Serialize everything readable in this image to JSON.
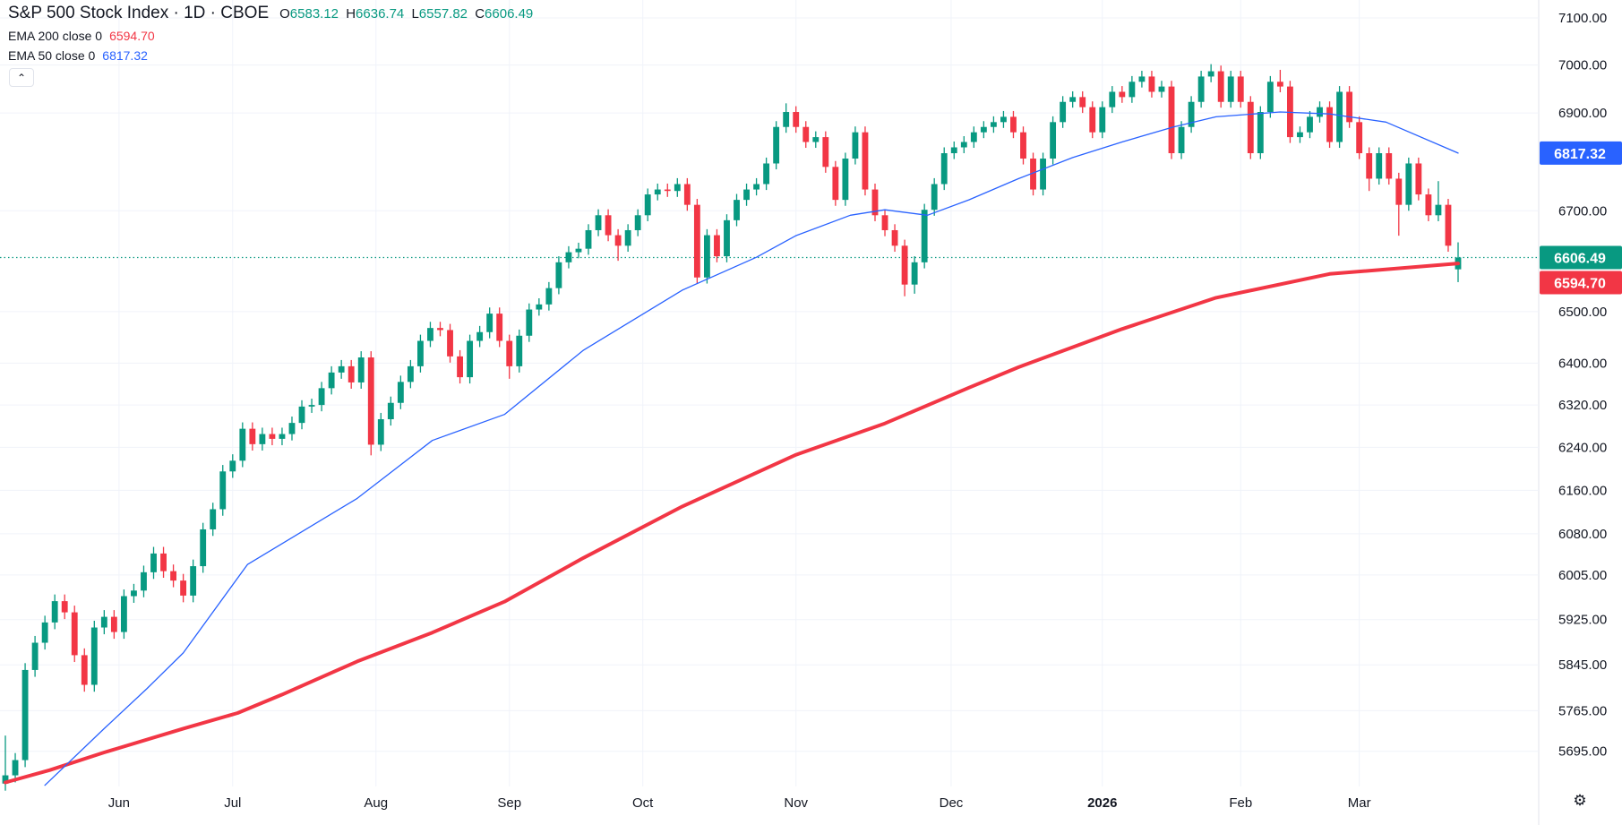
{
  "header": {
    "title": "S&P 500 Stock Index · 1D · CBOE",
    "open_label": "O",
    "open": "6583.12",
    "high_label": "H",
    "high": "6636.74",
    "low_label": "L",
    "low": "6557.82",
    "close_label": "C",
    "close": "6606.49"
  },
  "indicators": [
    {
      "label": "EMA 200 close 0",
      "value": "6594.70",
      "color": "#F23645"
    },
    {
      "label": "EMA 50 close 0",
      "value": "6817.32",
      "color": "#2962FF"
    }
  ],
  "icons": {
    "collapse": "chevron-up-icon",
    "settings": "gear-icon"
  },
  "chart_data": {
    "type": "candlestick",
    "title": "S&P 500 Stock Index · 1D · CBOE",
    "y_scale": "log",
    "ylim": [
      5637,
      7138
    ],
    "grid": true,
    "colors": {
      "up": "#089981",
      "down": "#F23645",
      "ema200": "#F23645",
      "ema50": "#2962FF"
    },
    "y_ticks": [
      7100,
      7000,
      6900,
      6700,
      6500,
      6400,
      6320,
      6240,
      6160,
      6080,
      6005,
      5925,
      5845,
      5765,
      5695
    ],
    "y_tick_labels": [
      "7100.00",
      "7000.00",
      "6900.00",
      "6700.00",
      "6500.00",
      "6400.00",
      "6320.00",
      "6240.00",
      "6160.00",
      "6080.00",
      "6005.00",
      "5925.00",
      "5845.00",
      "5765.00",
      "5695.00"
    ],
    "price_tags": [
      {
        "value": 6817.32,
        "label": "6817.32",
        "color": "#2962FF"
      },
      {
        "value": 6606.49,
        "label": "6606.49",
        "color": "#089981"
      },
      {
        "value": 6594.7,
        "label": "6594.70",
        "color": "#F23645"
      }
    ],
    "last_price": 6606.49,
    "x_ticks": [
      {
        "label": "Jun",
        "index": 11.5
      },
      {
        "label": "Jul",
        "index": 23
      },
      {
        "label": "Aug",
        "index": 37.5
      },
      {
        "label": "Sep",
        "index": 51
      },
      {
        "label": "Oct",
        "index": 64.5
      },
      {
        "label": "Nov",
        "index": 80
      },
      {
        "label": "Dec",
        "index": 95.7
      },
      {
        "label": "2026",
        "index": 111,
        "bold": true
      },
      {
        "label": "Feb",
        "index": 125
      },
      {
        "label": "Mar",
        "index": 137
      }
    ],
    "ohlc": [
      [
        5640,
        5722,
        5628,
        5654
      ],
      [
        5654,
        5692,
        5642,
        5680
      ],
      [
        5680,
        5848,
        5668,
        5836
      ],
      [
        5836,
        5896,
        5824,
        5884
      ],
      [
        5884,
        5932,
        5872,
        5920
      ],
      [
        5920,
        5970,
        5908,
        5958
      ],
      [
        5958,
        5970,
        5926,
        5938
      ],
      [
        5938,
        5950,
        5850,
        5862
      ],
      [
        5862,
        5874,
        5798,
        5810
      ],
      [
        5810,
        5923,
        5798,
        5911
      ],
      [
        5911,
        5942,
        5899,
        5930
      ],
      [
        5930,
        5942,
        5891,
        5903
      ],
      [
        5903,
        5979,
        5891,
        5967
      ],
      [
        5967,
        5989,
        5955,
        5977
      ],
      [
        5977,
        6022,
        5965,
        6010
      ],
      [
        6010,
        6056,
        5998,
        6044
      ],
      [
        6044,
        6056,
        6000,
        6012
      ],
      [
        6012,
        6024,
        5983,
        5995
      ],
      [
        5995,
        6007,
        5956,
        5968
      ],
      [
        5968,
        6033,
        5956,
        6021
      ],
      [
        6021,
        6100,
        6009,
        6088
      ],
      [
        6088,
        6137,
        6076,
        6125
      ],
      [
        6125,
        6207,
        6113,
        6195
      ],
      [
        6195,
        6227,
        6183,
        6215
      ],
      [
        6215,
        6287,
        6203,
        6275
      ],
      [
        6275,
        6287,
        6234,
        6246
      ],
      [
        6246,
        6277,
        6234,
        6265
      ],
      [
        6265,
        6277,
        6244,
        6256
      ],
      [
        6256,
        6277,
        6244,
        6265
      ],
      [
        6265,
        6298,
        6253,
        6286
      ],
      [
        6286,
        6329,
        6274,
        6317
      ],
      [
        6317,
        6332,
        6305,
        6320
      ],
      [
        6320,
        6364,
        6308,
        6352
      ],
      [
        6352,
        6394,
        6340,
        6382
      ],
      [
        6382,
        6406,
        6370,
        6394
      ],
      [
        6394,
        6406,
        6351,
        6363
      ],
      [
        6363,
        6423,
        6351,
        6411
      ],
      [
        6411,
        6423,
        6225,
        6245
      ],
      [
        6245,
        6305,
        6233,
        6293
      ],
      [
        6293,
        6336,
        6281,
        6324
      ],
      [
        6324,
        6376,
        6312,
        6364
      ],
      [
        6364,
        6406,
        6352,
        6394
      ],
      [
        6394,
        6455,
        6382,
        6443
      ],
      [
        6443,
        6480,
        6431,
        6468
      ],
      [
        6468,
        6480,
        6452,
        6464
      ],
      [
        6464,
        6476,
        6401,
        6413
      ],
      [
        6413,
        6425,
        6361,
        6373
      ],
      [
        6373,
        6455,
        6361,
        6443
      ],
      [
        6443,
        6472,
        6431,
        6460
      ],
      [
        6460,
        6508,
        6448,
        6496
      ],
      [
        6496,
        6508,
        6431,
        6443
      ],
      [
        6443,
        6455,
        6370,
        6394
      ],
      [
        6394,
        6465,
        6382,
        6453
      ],
      [
        6453,
        6516,
        6441,
        6504
      ],
      [
        6504,
        6526,
        6492,
        6514
      ],
      [
        6514,
        6558,
        6502,
        6546
      ],
      [
        6546,
        6609,
        6534,
        6597
      ],
      [
        6597,
        6629,
        6585,
        6617
      ],
      [
        6617,
        6636,
        6605,
        6624
      ],
      [
        6624,
        6673,
        6612,
        6661
      ],
      [
        6661,
        6703,
        6649,
        6691
      ],
      [
        6691,
        6703,
        6639,
        6651
      ],
      [
        6651,
        6663,
        6600,
        6630
      ],
      [
        6630,
        6673,
        6618,
        6661
      ],
      [
        6661,
        6703,
        6649,
        6691
      ],
      [
        6691,
        6745,
        6679,
        6733
      ],
      [
        6733,
        6755,
        6721,
        6743
      ],
      [
        6743,
        6755,
        6728,
        6740
      ],
      [
        6740,
        6766,
        6728,
        6754
      ],
      [
        6754,
        6766,
        6700,
        6712
      ],
      [
        6712,
        6724,
        6555,
        6567
      ],
      [
        6567,
        6663,
        6555,
        6651
      ],
      [
        6651,
        6663,
        6597,
        6609
      ],
      [
        6609,
        6693,
        6597,
        6681
      ],
      [
        6681,
        6734,
        6669,
        6722
      ],
      [
        6722,
        6755,
        6710,
        6743
      ],
      [
        6743,
        6766,
        6731,
        6754
      ],
      [
        6754,
        6808,
        6742,
        6796
      ],
      [
        6796,
        6883,
        6784,
        6871
      ],
      [
        6871,
        6920,
        6859,
        6902
      ],
      [
        6902,
        6914,
        6859,
        6871
      ],
      [
        6871,
        6883,
        6828,
        6840
      ],
      [
        6840,
        6862,
        6828,
        6850
      ],
      [
        6850,
        6862,
        6777,
        6789
      ],
      [
        6789,
        6801,
        6710,
        6722
      ],
      [
        6722,
        6818,
        6710,
        6806
      ],
      [
        6806,
        6872,
        6794,
        6860
      ],
      [
        6860,
        6872,
        6731,
        6743
      ],
      [
        6743,
        6755,
        6679,
        6691
      ],
      [
        6691,
        6703,
        6649,
        6661
      ],
      [
        6661,
        6673,
        6618,
        6630
      ],
      [
        6630,
        6642,
        6530,
        6553
      ],
      [
        6553,
        6609,
        6535,
        6597
      ],
      [
        6597,
        6714,
        6585,
        6702
      ],
      [
        6702,
        6766,
        6690,
        6754
      ],
      [
        6754,
        6829,
        6742,
        6817
      ],
      [
        6817,
        6841,
        6805,
        6829
      ],
      [
        6829,
        6852,
        6817,
        6840
      ],
      [
        6840,
        6872,
        6828,
        6860
      ],
      [
        6860,
        6883,
        6848,
        6871
      ],
      [
        6871,
        6893,
        6859,
        6881
      ],
      [
        6881,
        6904,
        6869,
        6892
      ],
      [
        6892,
        6904,
        6848,
        6860
      ],
      [
        6860,
        6872,
        6794,
        6806
      ],
      [
        6806,
        6818,
        6731,
        6743
      ],
      [
        6743,
        6818,
        6731,
        6806
      ],
      [
        6806,
        6893,
        6794,
        6881
      ],
      [
        6881,
        6935,
        6869,
        6923
      ],
      [
        6923,
        6945,
        6911,
        6933
      ],
      [
        6933,
        6945,
        6900,
        6912
      ],
      [
        6912,
        6924,
        6848,
        6860
      ],
      [
        6860,
        6924,
        6848,
        6912
      ],
      [
        6912,
        6956,
        6900,
        6944
      ],
      [
        6944,
        6956,
        6921,
        6933
      ],
      [
        6933,
        6977,
        6921,
        6965
      ],
      [
        6965,
        6988,
        6953,
        6976
      ],
      [
        6976,
        6988,
        6932,
        6944
      ],
      [
        6944,
        6967,
        6932,
        6955
      ],
      [
        6955,
        6967,
        6805,
        6817
      ],
      [
        6817,
        6883,
        6805,
        6871
      ],
      [
        6871,
        6935,
        6859,
        6923
      ],
      [
        6923,
        6988,
        6911,
        6976
      ],
      [
        6976,
        7002,
        6964,
        6987
      ],
      [
        6987,
        6999,
        6911,
        6923
      ],
      [
        6923,
        6988,
        6911,
        6976
      ],
      [
        6976,
        6988,
        6911,
        6923
      ],
      [
        6923,
        6935,
        6805,
        6817
      ],
      [
        6817,
        6914,
        6805,
        6902
      ],
      [
        6902,
        6977,
        6890,
        6965
      ],
      [
        6965,
        6990,
        6943,
        6955
      ],
      [
        6955,
        6967,
        6838,
        6850
      ],
      [
        6850,
        6872,
        6838,
        6860
      ],
      [
        6860,
        6904,
        6848,
        6892
      ],
      [
        6892,
        6924,
        6880,
        6912
      ],
      [
        6912,
        6924,
        6828,
        6840
      ],
      [
        6840,
        6956,
        6828,
        6944
      ],
      [
        6944,
        6956,
        6869,
        6881
      ],
      [
        6881,
        6893,
        6805,
        6817
      ],
      [
        6817,
        6829,
        6740,
        6765
      ],
      [
        6765,
        6829,
        6753,
        6817
      ],
      [
        6817,
        6829,
        6753,
        6765
      ],
      [
        6765,
        6777,
        6650,
        6712
      ],
      [
        6712,
        6808,
        6700,
        6796
      ],
      [
        6796,
        6808,
        6721,
        6733
      ],
      [
        6733,
        6745,
        6679,
        6691
      ],
      [
        6691,
        6760,
        6679,
        6712
      ],
      [
        6712,
        6724,
        6618,
        6630
      ],
      [
        6583.12,
        6636.74,
        6557.82,
        6606.49
      ]
    ],
    "series": [
      {
        "name": "EMA 200 close 0",
        "points": [
          [
            0,
            5642
          ],
          [
            4.5,
            5663
          ],
          [
            10,
            5693
          ],
          [
            18,
            5734
          ],
          [
            23.5,
            5761
          ],
          [
            28,
            5793
          ],
          [
            35.6,
            5851
          ],
          [
            43.2,
            5902
          ],
          [
            50.5,
            5957
          ],
          [
            58.5,
            6036
          ],
          [
            68.5,
            6130
          ],
          [
            80,
            6226
          ],
          [
            89,
            6285
          ],
          [
            97.5,
            6353
          ],
          [
            102.5,
            6392
          ],
          [
            113,
            6466
          ],
          [
            122.5,
            6527
          ],
          [
            134,
            6574
          ],
          [
            147,
            6594.7
          ]
        ]
      },
      {
        "name": "EMA 50 close 0",
        "points": [
          [
            4,
            5637
          ],
          [
            10,
            5734
          ],
          [
            14.3,
            5803
          ],
          [
            18,
            5866
          ],
          [
            24.5,
            6024
          ],
          [
            35.6,
            6145
          ],
          [
            43.2,
            6253
          ],
          [
            50.5,
            6302
          ],
          [
            58.5,
            6425
          ],
          [
            68.5,
            6542
          ],
          [
            76,
            6607
          ],
          [
            80,
            6650
          ],
          [
            85.5,
            6691
          ],
          [
            89,
            6702
          ],
          [
            93.3,
            6691
          ],
          [
            97.5,
            6722
          ],
          [
            102.5,
            6765
          ],
          [
            108,
            6808
          ],
          [
            113,
            6840
          ],
          [
            118.2,
            6871
          ],
          [
            122.5,
            6892
          ],
          [
            129,
            6902
          ],
          [
            134,
            6898
          ],
          [
            139.7,
            6881
          ],
          [
            147,
            6817.32
          ]
        ]
      }
    ]
  }
}
